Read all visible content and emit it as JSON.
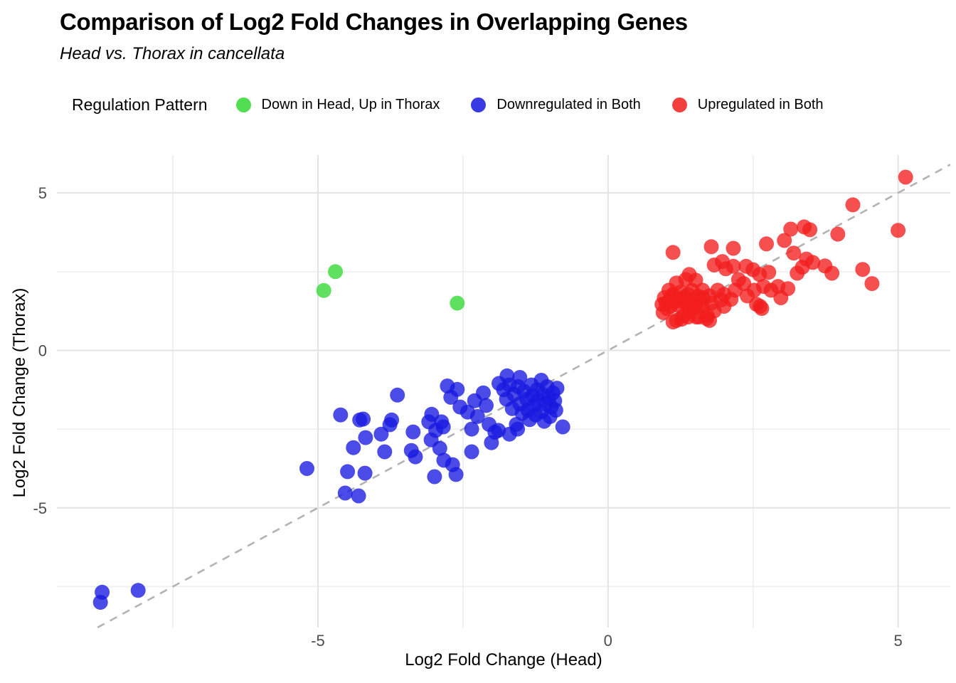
{
  "chart_data": {
    "type": "scatter",
    "title": "Comparison of Log2 Fold Changes in Overlapping Genes",
    "subtitle": "Head vs. Thorax in cancellata",
    "xlabel": "Log2 Fold Change (Head)",
    "ylabel": "Log2 Fold Change (Thorax)",
    "legend_title": "Regulation Pattern",
    "legend_position": "top",
    "grid": true,
    "background": "#ffffff",
    "grid_major_color": "#e3e3e3",
    "grid_minor_color": "#efefef",
    "xlim": [
      -9.5,
      5.9
    ],
    "ylim": [
      -8.8,
      6.2
    ],
    "x_ticks": [
      -5,
      0,
      5
    ],
    "y_ticks": [
      5,
      0,
      -5
    ],
    "x_grid_major": [
      -5,
      0,
      5
    ],
    "x_grid_minor": [
      -7.5,
      -2.5,
      2.5
    ],
    "y_grid_major": [
      -5,
      0,
      5
    ],
    "y_grid_minor": [
      -7.5,
      -2.5,
      2.5
    ],
    "reference_line": {
      "equation": "y = x",
      "style": "dashed",
      "color": "#b3b3b3"
    },
    "point_alpha": 0.78,
    "point_radius_px": 10.5,
    "series": [
      {
        "name": "Down in Head, Up in Thorax",
        "color": "#32d932",
        "points": [
          [
            -4.9,
            1.9
          ],
          [
            -4.7,
            2.5
          ],
          [
            -2.6,
            1.5
          ]
        ]
      },
      {
        "name": "Downregulated in Both",
        "color": "#1818e0",
        "points": [
          [
            -8.75,
            -8.0
          ],
          [
            -8.72,
            -7.68
          ],
          [
            -8.1,
            -7.62
          ],
          [
            -5.19,
            -3.75
          ],
          [
            -4.61,
            -2.05
          ],
          [
            -4.53,
            -4.53
          ],
          [
            -4.49,
            -3.85
          ],
          [
            -4.39,
            -3.09
          ],
          [
            -4.3,
            -4.62
          ],
          [
            -4.28,
            -2.21
          ],
          [
            -4.22,
            -2.18
          ],
          [
            -4.19,
            -3.9
          ],
          [
            -4.18,
            -2.77
          ],
          [
            -3.91,
            -2.66
          ],
          [
            -3.85,
            -3.22
          ],
          [
            -3.76,
            -2.36
          ],
          [
            -3.73,
            -2.21
          ],
          [
            -3.63,
            -1.42
          ],
          [
            -3.39,
            -3.18
          ],
          [
            -3.36,
            -2.59
          ],
          [
            -3.32,
            -3.38
          ],
          [
            -3.09,
            -2.27
          ],
          [
            -3.05,
            -2.84
          ],
          [
            -3.04,
            -2.03
          ],
          [
            -2.99,
            -4.01
          ],
          [
            -2.97,
            -2.54
          ],
          [
            -2.9,
            -3.11
          ],
          [
            -2.87,
            -2.27
          ],
          [
            -2.84,
            -2.43
          ],
          [
            -2.83,
            -3.49
          ],
          [
            -2.77,
            -1.13
          ],
          [
            -2.71,
            -1.49
          ],
          [
            -2.68,
            -3.63
          ],
          [
            -2.62,
            -3.94
          ],
          [
            -2.6,
            -1.24
          ],
          [
            -2.55,
            -1.8
          ],
          [
            -2.42,
            -1.96
          ],
          [
            -2.35,
            -3.22
          ],
          [
            -2.35,
            -2.5
          ],
          [
            -2.3,
            -1.6
          ],
          [
            -2.25,
            -2.1
          ],
          [
            -2.15,
            -1.35
          ],
          [
            -2.1,
            -1.75
          ],
          [
            -2.05,
            -2.35
          ],
          [
            -2.01,
            -2.93
          ],
          [
            -1.95,
            -2.6
          ],
          [
            -1.89,
            -2.54
          ],
          [
            -1.88,
            -1.05
          ],
          [
            -1.8,
            -1.25
          ],
          [
            -1.75,
            -1.55
          ],
          [
            -1.74,
            -0.81
          ],
          [
            -1.7,
            -1.1
          ],
          [
            -1.7,
            -2.66
          ],
          [
            -1.65,
            -1.85
          ],
          [
            -1.62,
            -1.4
          ],
          [
            -1.58,
            -2.35
          ],
          [
            -1.56,
            -2.5
          ],
          [
            -1.55,
            -1.15
          ],
          [
            -1.52,
            -0.86
          ],
          [
            -1.52,
            -1.7
          ],
          [
            -1.48,
            -2.0
          ],
          [
            -1.45,
            -1.3
          ],
          [
            -1.4,
            -1.55
          ],
          [
            -1.38,
            -1.9
          ],
          [
            -1.35,
            -2.2
          ],
          [
            -1.32,
            -1.1
          ],
          [
            -1.3,
            -1.45
          ],
          [
            -1.28,
            -1.75
          ],
          [
            -1.25,
            -2.05
          ],
          [
            -1.22,
            -1.25
          ],
          [
            -1.2,
            -1.6
          ],
          [
            -1.15,
            -0.95
          ],
          [
            -1.15,
            -1.95
          ],
          [
            -1.12,
            -1.4
          ],
          [
            -1.1,
            -2.25
          ],
          [
            -1.08,
            -1.7
          ],
          [
            -1.05,
            -1.15
          ],
          [
            -1.02,
            -1.52
          ],
          [
            -1.0,
            -2.1
          ],
          [
            -0.98,
            -1.8
          ],
          [
            -0.95,
            -1.35
          ],
          [
            -0.92,
            -1.6
          ],
          [
            -0.9,
            -1.9
          ],
          [
            -0.88,
            -1.2
          ],
          [
            -0.78,
            -2.43
          ]
        ]
      },
      {
        "name": "Upregulated in Both",
        "color": "#f21d1d",
        "points": [
          [
            0.93,
            1.46
          ],
          [
            0.95,
            1.2
          ],
          [
            0.97,
            1.67
          ],
          [
            1.0,
            1.5
          ],
          [
            1.02,
            1.32
          ],
          [
            1.05,
            1.91
          ],
          [
            1.05,
            1.58
          ],
          [
            1.08,
            1.4
          ],
          [
            1.1,
            1.72
          ],
          [
            1.12,
            0.9
          ],
          [
            1.12,
            1.78
          ],
          [
            1.12,
            3.11
          ],
          [
            1.15,
            1.55
          ],
          [
            1.18,
            0.95
          ],
          [
            1.18,
            2.14
          ],
          [
            1.2,
            1.62
          ],
          [
            1.22,
            1.42
          ],
          [
            1.25,
            1.85
          ],
          [
            1.27,
            0.99
          ],
          [
            1.28,
            1.55
          ],
          [
            1.3,
            1.1
          ],
          [
            1.32,
            1.7
          ],
          [
            1.34,
            2.25
          ],
          [
            1.36,
            1.48
          ],
          [
            1.38,
            1.78
          ],
          [
            1.38,
            1.06
          ],
          [
            1.4,
            2.41
          ],
          [
            1.4,
            1.24
          ],
          [
            1.43,
            1.6
          ],
          [
            1.45,
            1.9
          ],
          [
            1.48,
            1.35
          ],
          [
            1.51,
            1.46
          ],
          [
            1.51,
            2.23
          ],
          [
            1.52,
            1.06
          ],
          [
            1.55,
            1.72
          ],
          [
            1.57,
            1.06
          ],
          [
            1.6,
            1.5
          ],
          [
            1.63,
            1.4
          ],
          [
            1.63,
            1.91
          ],
          [
            1.64,
            1.67
          ],
          [
            1.7,
            1.01
          ],
          [
            1.71,
            1.1
          ],
          [
            1.75,
            0.95
          ],
          [
            1.75,
            1.73
          ],
          [
            1.78,
            1.5
          ],
          [
            1.78,
            3.29
          ],
          [
            1.83,
            1.25
          ],
          [
            1.83,
            2.71
          ],
          [
            1.89,
            1.91
          ],
          [
            1.95,
            1.6
          ],
          [
            1.97,
            2.82
          ],
          [
            2.0,
            1.4
          ],
          [
            2.0,
            1.78
          ],
          [
            2.03,
            2.59
          ],
          [
            2.12,
            1.62
          ],
          [
            2.16,
            3.24
          ],
          [
            2.16,
            2.67
          ],
          [
            2.19,
            1.91
          ],
          [
            2.25,
            2.25
          ],
          [
            2.34,
            2.12
          ],
          [
            2.38,
            2.67
          ],
          [
            2.4,
            1.73
          ],
          [
            2.5,
            2.56
          ],
          [
            2.52,
            1.91
          ],
          [
            2.56,
            1.46
          ],
          [
            2.61,
            2.41
          ],
          [
            2.62,
            1.4
          ],
          [
            2.65,
            1.33
          ],
          [
            2.68,
            2.03
          ],
          [
            2.73,
            3.38
          ],
          [
            2.77,
            2.48
          ],
          [
            2.81,
            1.91
          ],
          [
            2.93,
            2.03
          ],
          [
            2.98,
            1.67
          ],
          [
            3.04,
            3.49
          ],
          [
            3.1,
            1.96
          ],
          [
            3.15,
            3.85
          ],
          [
            3.2,
            3.09
          ],
          [
            3.26,
            2.45
          ],
          [
            3.35,
            2.64
          ],
          [
            3.38,
            3.92
          ],
          [
            3.42,
            2.9
          ],
          [
            3.48,
            3.83
          ],
          [
            3.53,
            2.79
          ],
          [
            3.74,
            2.68
          ],
          [
            3.86,
            2.45
          ],
          [
            3.96,
            3.69
          ],
          [
            4.22,
            4.62
          ],
          [
            4.39,
            2.57
          ],
          [
            4.55,
            2.12
          ],
          [
            5.0,
            3.81
          ],
          [
            5.13,
            5.5
          ]
        ]
      }
    ]
  }
}
